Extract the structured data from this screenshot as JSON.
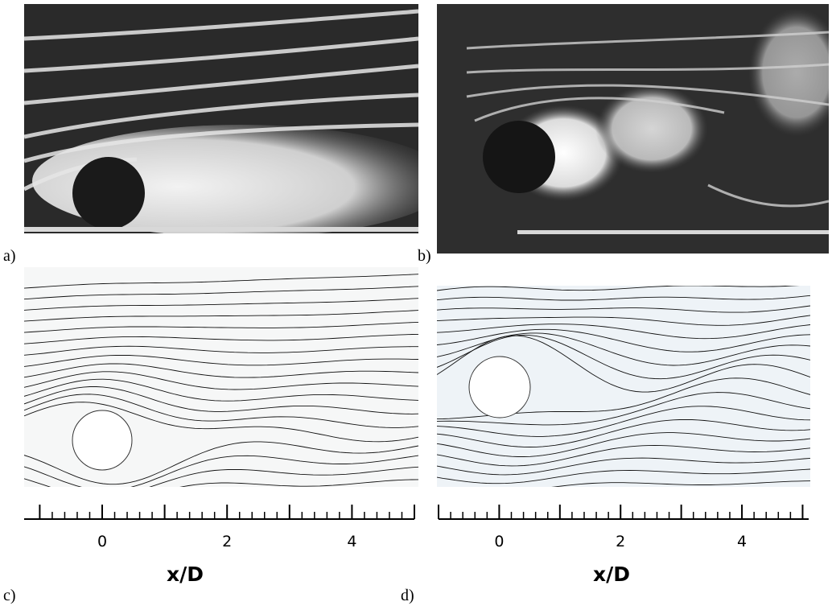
{
  "panels": [
    {
      "label": "a)"
    },
    {
      "label": "b)"
    },
    {
      "label": "c)",
      "axis": {
        "label": "x/D",
        "xlim": [
          -1.25,
          5
        ],
        "xticks": [
          0,
          2,
          4
        ],
        "major_ticks": [
          -1,
          0,
          1,
          2,
          3,
          4,
          5
        ],
        "minor_step": 0.2
      }
    },
    {
      "label": "d)",
      "axis": {
        "label": "x/D",
        "xlim": [
          -1.0,
          5.1
        ],
        "xticks": [
          0,
          2,
          4
        ],
        "major_ticks": [
          -1,
          0,
          1,
          2,
          3,
          4,
          5
        ],
        "minor_step": 0.2
      }
    }
  ]
}
